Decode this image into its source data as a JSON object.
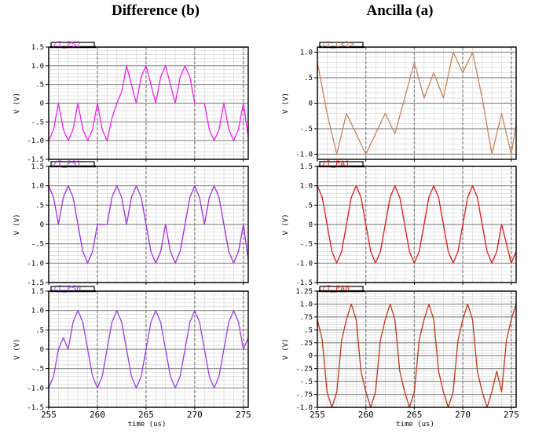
{
  "titles": {
    "left": "Difference (b)",
    "right": "Ancilla (a)"
  },
  "chart_data": [
    {
      "type": "line",
      "column": "left",
      "row": 0,
      "tag": "/I_PS2",
      "color": "#ee22ee",
      "ylabel": "V (V)",
      "ylim": [
        -1.5,
        1.5
      ],
      "yticks": [
        -1.5,
        -1.0,
        -0.5,
        0,
        0.5,
        1.0,
        1.5
      ],
      "ytick_labels": [
        "-1.5",
        "-1.0",
        "-.5",
        "0",
        ".5",
        "1.0",
        "1.5"
      ],
      "xlim": [
        255,
        275.5
      ],
      "xticks": [
        255,
        260,
        265,
        270,
        275
      ],
      "xtick_labels": [
        "255",
        "260",
        "265",
        "270",
        "275"
      ],
      "xlabel": "",
      "series": [
        {
          "x": [
            255,
            255.5,
            256,
            256.5,
            257,
            257.5,
            258,
            258.5,
            259,
            259.5,
            260,
            260.5,
            261,
            261.5,
            262,
            262.5,
            263,
            263.5,
            264,
            264.5,
            265,
            265.5,
            266,
            266.5,
            267,
            267.5,
            268,
            268.5,
            269,
            269.5,
            270,
            270.5,
            271,
            271.5,
            272,
            272.5,
            273,
            273.5,
            274,
            274.5,
            275,
            275.5
          ],
          "y": [
            -1,
            -0.7,
            0,
            -0.7,
            -1,
            -0.7,
            0,
            -0.7,
            -1,
            -0.7,
            0,
            -0.7,
            -1,
            -0.4,
            0,
            0.3,
            1,
            0.5,
            0,
            0.7,
            1,
            0.5,
            0,
            0.7,
            1,
            0.5,
            0,
            0.7,
            1,
            0.7,
            0,
            0,
            0,
            -0.7,
            -1,
            -0.7,
            0,
            -0.7,
            -1,
            -0.7,
            0,
            -0.9
          ]
        }
      ]
    },
    {
      "type": "line",
      "column": "left",
      "row": 1,
      "tag": "/I_PS1",
      "color": "#a22ee0",
      "ylabel": "V (V)",
      "ylim": [
        -1.5,
        1.5
      ],
      "yticks": [
        -1.5,
        -1.0,
        -0.5,
        0,
        0.5,
        1.0,
        1.5
      ],
      "ytick_labels": [
        "-1.5",
        "-1.0",
        "-.5",
        "0",
        ".5",
        "1.0",
        "1.5"
      ],
      "xlim": [
        255,
        275.5
      ],
      "xticks": [
        255,
        260,
        265,
        270,
        275
      ],
      "xtick_labels": [
        "255",
        "260",
        "265",
        "270",
        "275"
      ],
      "xlabel": "",
      "series": [
        {
          "x": [
            255,
            255.5,
            256,
            256.5,
            257,
            257.5,
            258,
            258.5,
            259,
            259.5,
            260,
            260.5,
            261,
            261.5,
            262,
            262.5,
            263,
            263.5,
            264,
            264.5,
            265,
            265.5,
            266,
            266.5,
            267,
            267.5,
            268,
            268.5,
            269,
            269.5,
            270,
            270.5,
            271,
            271.5,
            272,
            272.5,
            273,
            273.5,
            274,
            274.5,
            275,
            275.5
          ],
          "y": [
            1,
            0.7,
            0,
            0.7,
            1,
            0.7,
            0,
            -0.7,
            -1,
            -0.7,
            0,
            0,
            0,
            0.7,
            1,
            0.7,
            0,
            0.7,
            1,
            0.7,
            0,
            -0.7,
            -1,
            -0.7,
            0,
            -0.7,
            -1,
            -0.7,
            0,
            0.7,
            1,
            0.7,
            0,
            0.7,
            1,
            0.7,
            0,
            -0.7,
            -1,
            -0.7,
            0,
            -0.9
          ]
        }
      ]
    },
    {
      "type": "line",
      "column": "left",
      "row": 2,
      "tag": "/I_PS0",
      "color": "#9a3ee8",
      "ylabel": "V (V)",
      "ylim": [
        -1.5,
        1.5
      ],
      "yticks": [
        -1.5,
        -1.0,
        -0.5,
        0,
        0.5,
        1.0,
        1.5
      ],
      "ytick_labels": [
        "-1.5",
        "-1.0",
        "-.5",
        "0",
        ".5",
        "1.0",
        "1.5"
      ],
      "xlim": [
        255,
        275.5
      ],
      "xticks": [
        255,
        260,
        265,
        270,
        275
      ],
      "xtick_labels": [
        "255",
        "260",
        "265",
        "270",
        "275"
      ],
      "xlabel": "time (us)",
      "series": [
        {
          "x": [
            255,
            255.5,
            256,
            256.5,
            257,
            257.5,
            258,
            258.5,
            259,
            259.5,
            260,
            260.5,
            261,
            261.5,
            262,
            262.5,
            263,
            263.5,
            264,
            264.5,
            265,
            265.5,
            266,
            266.5,
            267,
            267.5,
            268,
            268.5,
            269,
            269.5,
            270,
            270.5,
            271,
            271.5,
            272,
            272.5,
            273,
            273.5,
            274,
            274.5,
            275,
            275.5
          ],
          "y": [
            -1,
            -0.7,
            0,
            0.3,
            0,
            0.7,
            1,
            0.7,
            0,
            -0.7,
            -1,
            -0.7,
            0,
            0.7,
            1,
            0.7,
            0,
            -0.7,
            -1,
            -0.7,
            0,
            0.7,
            1,
            0.7,
            0,
            -0.7,
            -1,
            -0.7,
            0,
            0.7,
            1,
            0.7,
            0,
            -0.7,
            -1,
            -0.7,
            0,
            0.7,
            1,
            0.7,
            0,
            0.3
          ]
        }
      ]
    },
    {
      "type": "line",
      "column": "right",
      "row": 0,
      "tag": "/I_L<2>",
      "color": "#c9825a",
      "ylabel": "V (V)",
      "ylim": [
        -1.1,
        1.1
      ],
      "yticks": [
        -1.0,
        -0.5,
        0,
        0.5,
        1.0
      ],
      "ytick_labels": [
        "-1.0",
        "-.5",
        "0",
        ".5",
        "1.0"
      ],
      "xlim": [
        255,
        275.5
      ],
      "xticks": [
        255,
        260,
        265,
        270,
        275
      ],
      "xtick_labels": [
        "255",
        "260",
        "265",
        "270",
        "275"
      ],
      "xlabel": "",
      "series": [
        {
          "x": [
            255,
            256,
            257,
            258,
            259,
            260,
            261,
            262,
            263,
            264,
            265,
            266,
            267,
            268,
            269,
            270,
            271,
            272,
            273,
            274,
            275,
            275.5
          ],
          "y": [
            0.8,
            -0.2,
            -1,
            -0.2,
            -0.6,
            -1,
            -0.6,
            -0.2,
            -0.6,
            0.1,
            0.8,
            0.1,
            0.6,
            0.1,
            1,
            0.6,
            1,
            0.1,
            -1,
            -0.2,
            -1,
            -0.4
          ]
        }
      ]
    },
    {
      "type": "line",
      "column": "right",
      "row": 1,
      "tag": "/I_PA1",
      "color": "#e01818",
      "ylabel": "V (V)",
      "ylim": [
        -1.5,
        1.5
      ],
      "yticks": [
        -1.5,
        -1.0,
        -0.5,
        0,
        0.5,
        1.0,
        1.5
      ],
      "ytick_labels": [
        "-1.5",
        "-1.0",
        "-.5",
        "0",
        ".5",
        "1.0",
        "1.5"
      ],
      "xlim": [
        255,
        275.5
      ],
      "xticks": [
        255,
        260,
        265,
        270,
        275
      ],
      "xtick_labels": [
        "255",
        "260",
        "265",
        "270",
        "275"
      ],
      "xlabel": "",
      "series": [
        {
          "x": [
            255,
            255.5,
            256,
            256.5,
            257,
            257.5,
            258,
            258.5,
            259,
            259.5,
            260,
            260.5,
            261,
            261.5,
            262,
            262.5,
            263,
            263.5,
            264,
            264.5,
            265,
            265.5,
            266,
            266.5,
            267,
            267.5,
            268,
            268.5,
            269,
            269.5,
            270,
            270.5,
            271,
            271.5,
            272,
            272.5,
            273,
            273.5,
            274,
            274.5,
            275,
            275.5
          ],
          "y": [
            1,
            0.7,
            0,
            -0.7,
            -1,
            -0.7,
            0,
            0.7,
            1,
            0.7,
            0,
            -0.7,
            -1,
            -0.7,
            0,
            0.7,
            1,
            0.7,
            0,
            -0.7,
            -1,
            -0.7,
            0,
            0.7,
            1,
            0.7,
            0,
            -0.7,
            -1,
            -0.7,
            0,
            0.7,
            1,
            0.7,
            0,
            -0.7,
            -1,
            -0.7,
            0,
            -0.5,
            -1,
            -0.7
          ]
        }
      ]
    },
    {
      "type": "line",
      "column": "right",
      "row": 2,
      "tag": "/I_PA0",
      "color": "#c03818",
      "ylabel": "V (V)",
      "ylim": [
        -1.0,
        1.25
      ],
      "yticks": [
        -1.0,
        -0.75,
        -0.5,
        -0.25,
        0,
        0.25,
        0.5,
        0.75,
        1.0,
        1.25
      ],
      "ytick_labels": [
        "-1.0",
        "-.75",
        "-.5",
        "-.25",
        "0",
        ".25",
        ".5",
        ".75",
        "1.0",
        "1.25"
      ],
      "xlim": [
        255,
        275.5
      ],
      "xticks": [
        255,
        260,
        265,
        270,
        275
      ],
      "xtick_labels": [
        "255",
        "260",
        "265",
        "270",
        "275"
      ],
      "xlabel": "time (us)",
      "series": [
        {
          "x": [
            255,
            255.5,
            256,
            256.5,
            257,
            257.5,
            258,
            258.5,
            259,
            259.5,
            260,
            260.5,
            261,
            261.5,
            262,
            262.5,
            263,
            263.5,
            264,
            264.5,
            265,
            265.5,
            266,
            266.5,
            267,
            267.5,
            268,
            268.5,
            269,
            269.5,
            270,
            270.5,
            271,
            271.5,
            272,
            272.5,
            273,
            273.5,
            274,
            274.5,
            275,
            275.5
          ],
          "y": [
            0.7,
            0.3,
            -0.7,
            -1,
            -0.7,
            0.3,
            0.7,
            1,
            0.7,
            -0.3,
            -0.7,
            -1,
            -0.7,
            0.3,
            0.7,
            1,
            0.7,
            -0.3,
            -0.7,
            -1,
            -0.7,
            0.3,
            0.7,
            1,
            0.7,
            -0.3,
            -0.7,
            -1,
            -0.7,
            0.3,
            0.7,
            1,
            0.7,
            -0.3,
            -0.7,
            -1,
            -0.7,
            -0.3,
            -0.7,
            0.3,
            0.7,
            1
          ]
        }
      ]
    }
  ]
}
